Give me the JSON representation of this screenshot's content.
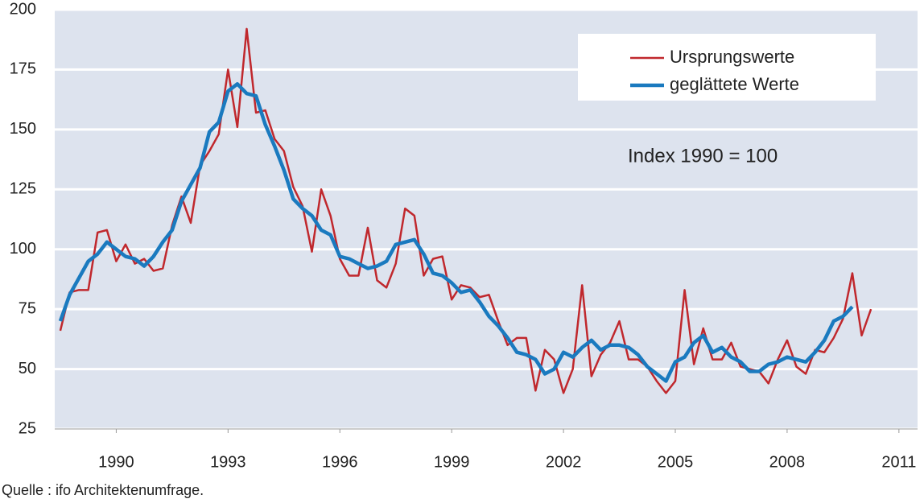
{
  "chart_data": {
    "type": "line",
    "annotation": "Index 1990 = 100",
    "source": "Quelle : ifo Architektenumfrage.",
    "xlim": [
      1988.35,
      2011.5
    ],
    "xticks": [
      1990,
      1993,
      1996,
      1999,
      2002,
      2005,
      2008,
      2011
    ],
    "ylim": [
      25,
      200
    ],
    "yticks": [
      25,
      50,
      75,
      100,
      125,
      150,
      175,
      200
    ],
    "grid": true,
    "legend": "upper right",
    "series": [
      {
        "name": "Ursprungswerte",
        "color": "#c0282d",
        "x": [
          1988.5,
          1988.75,
          1989,
          1989.25,
          1989.5,
          1989.75,
          1990,
          1990.25,
          1990.5,
          1990.75,
          1991,
          1991.25,
          1991.5,
          1991.75,
          1992,
          1992.25,
          1992.5,
          1992.75,
          1993,
          1993.25,
          1993.5,
          1993.75,
          1994,
          1994.25,
          1994.5,
          1994.75,
          1995,
          1995.25,
          1995.5,
          1995.75,
          1996,
          1996.25,
          1996.5,
          1996.75,
          1997,
          1997.25,
          1997.5,
          1997.75,
          1998,
          1998.25,
          1998.5,
          1998.75,
          1999,
          1999.25,
          1999.5,
          1999.75,
          2000,
          2000.25,
          2000.5,
          2000.75,
          2001,
          2001.25,
          2001.5,
          2001.75,
          2002,
          2002.25,
          2002.5,
          2002.75,
          2003,
          2003.25,
          2003.5,
          2003.75,
          2004,
          2004.25,
          2004.5,
          2004.75,
          2005,
          2005.25,
          2005.5,
          2005.75,
          2006,
          2006.25,
          2006.5,
          2006.75,
          2007,
          2007.25,
          2007.5,
          2007.75,
          2008,
          2008.25,
          2008.5,
          2008.75,
          2009,
          2009.25,
          2009.5,
          2009.75,
          2010,
          2010.25
        ],
        "values": [
          66,
          82,
          83,
          83,
          107,
          108,
          95,
          102,
          94,
          96,
          91,
          92,
          110,
          122,
          111,
          135,
          141,
          148,
          175,
          151,
          192,
          157,
          158,
          146,
          141,
          126,
          118,
          99,
          125,
          114,
          96,
          89,
          89,
          109,
          87,
          84,
          94,
          117,
          114,
          89,
          96,
          97,
          79,
          85,
          84,
          80,
          81,
          70,
          60,
          63,
          63,
          41,
          58,
          54,
          40,
          50,
          85,
          47,
          56,
          61,
          70,
          54,
          54,
          51,
          45,
          40,
          45,
          83,
          52,
          67,
          54,
          54,
          61,
          51,
          50,
          49,
          44,
          54,
          62,
          51,
          48,
          58,
          57,
          63,
          71,
          90,
          64,
          75
        ]
      },
      {
        "name": "geglättete Werte",
        "color": "#1a7abf",
        "x": [
          1988.5,
          1988.75,
          1989,
          1989.25,
          1989.5,
          1989.75,
          1990,
          1990.25,
          1990.5,
          1990.75,
          1991,
          1991.25,
          1991.5,
          1991.75,
          1992,
          1992.25,
          1992.5,
          1992.75,
          1993,
          1993.25,
          1993.5,
          1993.75,
          1994,
          1994.25,
          1994.5,
          1994.75,
          1995,
          1995.25,
          1995.5,
          1995.75,
          1996,
          1996.25,
          1996.5,
          1996.75,
          1997,
          1997.25,
          1997.5,
          1997.75,
          1998,
          1998.25,
          1998.5,
          1998.75,
          1999,
          1999.25,
          1999.5,
          1999.75,
          2000,
          2000.25,
          2000.5,
          2000.75,
          2001,
          2001.25,
          2001.5,
          2001.75,
          2002,
          2002.25,
          2002.5,
          2002.75,
          2003,
          2003.25,
          2003.5,
          2003.75,
          2004,
          2004.25,
          2004.5,
          2004.75,
          2005,
          2005.25,
          2005.5,
          2005.75,
          2006,
          2006.25,
          2006.5,
          2006.75,
          2007,
          2007.25,
          2007.5,
          2007.75,
          2008,
          2008.25,
          2008.5,
          2008.75,
          2009,
          2009.25,
          2009.5,
          2009.75
        ],
        "values": [
          70,
          81,
          88,
          95,
          98,
          103,
          100,
          97,
          96,
          93,
          97,
          103,
          108,
          120,
          127,
          134,
          149,
          153,
          166,
          169,
          165,
          164,
          152,
          143,
          133,
          121,
          117,
          114,
          108,
          106,
          97,
          96,
          94,
          92,
          93,
          95,
          102,
          103,
          104,
          98,
          90,
          89,
          86,
          82,
          83,
          78,
          72,
          68,
          63,
          57,
          56,
          54,
          48,
          50,
          57,
          55,
          59,
          62,
          58,
          60,
          60,
          59,
          56,
          51,
          48,
          45,
          53,
          55,
          61,
          64,
          57,
          59,
          55,
          53,
          49,
          49,
          52,
          53,
          55,
          54,
          53,
          57,
          62,
          70,
          72,
          76
        ]
      }
    ]
  }
}
